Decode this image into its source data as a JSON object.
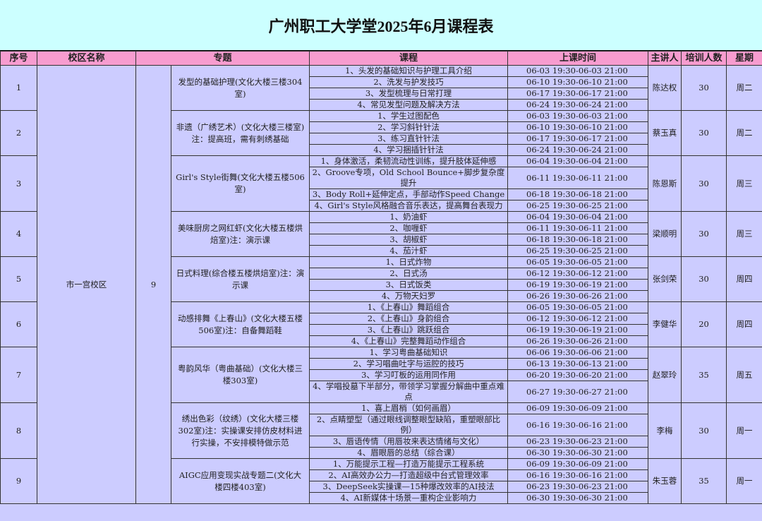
{
  "title": "广州职工大学堂2025年6月课程表",
  "header": {
    "columns": [
      "序号",
      "校区名称",
      "专题",
      "课程",
      "上课时间",
      "主讲人",
      "培训人数",
      "星期"
    ]
  },
  "campus": "市一宫校区",
  "campus_count": 9,
  "courses": [
    {
      "no": 1,
      "topic": "发型的基础护理(文化大楼三楼304室)",
      "lecturer": "陈达权",
      "students": 30,
      "weekday": "周二",
      "sessions": [
        {
          "title": "1、头发的基础知识与护理工具介绍",
          "time": "06-03 19:30-06-03 21:00"
        },
        {
          "title": "2、洗发与护发技巧",
          "time": "06-10 19:30-06-10 21:00"
        },
        {
          "title": "3、发型梳理与日常打理",
          "time": "06-17 19:30-06-17 21:00"
        },
        {
          "title": "4、常见发型问题及解决方法",
          "time": "06-24 19:30-06-24 21:00"
        }
      ]
    },
    {
      "no": 2,
      "topic": "非遗（广绣艺术）(文化大楼三楼室)注：提高班，需有刺绣基础",
      "lecturer": "蔡玉真",
      "students": 30,
      "weekday": "周二",
      "sessions": [
        {
          "title": "1、学生过图配色",
          "time": "06-03 19:30-06-03 21:00"
        },
        {
          "title": "2、学习斜针针法",
          "time": "06-10 19:30-06-10 21:00"
        },
        {
          "title": "3、练习直针针法",
          "time": "06-17 19:30-06-17 21:00"
        },
        {
          "title": "4、学习捆插针针法",
          "time": "06-24 19:30-06-24 21:00"
        }
      ]
    },
    {
      "no": 3,
      "topic": "Girl's Style街舞(文化大楼五楼506室)",
      "lecturer": "陈恩斯",
      "students": 30,
      "weekday": "周三",
      "sessions": [
        {
          "title": "1、身体激活，柔韧流动性训练，提升肢体延伸感",
          "time": "06-04 19:30-06-04 21:00"
        },
        {
          "title": "2、Groove专项，Old School Bounce+脚步复杂度提升",
          "time": "06-11 19:30-06-11 21:00"
        },
        {
          "title": "3、Body Roll+延伸定点，手部动作Speed Change",
          "time": "06-18 19:30-06-18 21:00"
        },
        {
          "title": "4、Girl's Style风格融合音乐表达，提高舞台表现力",
          "time": "06-25 19:30-06-25 21:00"
        }
      ]
    },
    {
      "no": 4,
      "topic": "美味厨房之网红虾(文化大楼五楼烘焙室)注：演示课",
      "lecturer": "梁顺明",
      "students": 30,
      "weekday": "周三",
      "sessions": [
        {
          "title": "1、奶油虾",
          "time": "06-04 19:30-06-04 21:00"
        },
        {
          "title": "2、咖喱虾",
          "time": "06-11 19:30-06-11 21:00"
        },
        {
          "title": "3、胡椒虾",
          "time": "06-18 19:30-06-18 21:00"
        },
        {
          "title": "4、茄汁虾",
          "time": "06-25 19:30-06-25 21:00"
        }
      ]
    },
    {
      "no": 5,
      "topic": "日式料理(综合楼五楼烘焙室)注：演示课",
      "lecturer": "张剑荣",
      "students": 30,
      "weekday": "周四",
      "sessions": [
        {
          "title": "1、日式炸物",
          "time": "06-05 19:30-06-05 21:00"
        },
        {
          "title": "2、日式汤",
          "time": "06-12 19:30-06-12 21:00"
        },
        {
          "title": "3、日式饭类",
          "time": "06-19 19:30-06-19 21:00"
        },
        {
          "title": "4、万物天妇罗",
          "time": "06-26 19:30-06-26 21:00"
        }
      ]
    },
    {
      "no": 6,
      "topic": "动感排舞《上春山》(文化大楼五楼506室)注：自备舞蹈鞋",
      "lecturer": "李健华",
      "students": 20,
      "weekday": "周四",
      "sessions": [
        {
          "title": "1、《上春山》舞蹈组合",
          "time": "06-05 19:30-06-05 21:00"
        },
        {
          "title": "2、《上春山》身韵组合",
          "time": "06-12 19:30-06-12 21:00"
        },
        {
          "title": "3、《上春山》跳跃组合",
          "time": "06-19 19:30-06-19 21:00"
        },
        {
          "title": "4、《上春山》完整舞蹈动作组合",
          "time": "06-26 19:30-06-26 21:00"
        }
      ]
    },
    {
      "no": 7,
      "topic": "粤韵风华（粤曲基础）(文化大楼三楼303室)",
      "lecturer": "赵翠玲",
      "students": 35,
      "weekday": "周五",
      "sessions": [
        {
          "title": "1、学习粤曲基础知识",
          "time": "06-06 19:30-06-06 21:00"
        },
        {
          "title": "2、学习唱曲吐字与运腔的技巧",
          "time": "06-13 19:30-06-13 21:00"
        },
        {
          "title": "3、学习叮板的运用同作用",
          "time": "06-20 19:30-06-20 21:00"
        },
        {
          "title": "4、学唱投墓下半部分，带领学习掌握分解曲中重点难点",
          "time": "06-27 19:30-06-27 21:00"
        }
      ]
    },
    {
      "no": 8,
      "topic": "绣出色彩（纹绣）(文化大楼三楼302室)注：实操课安排仿皮材料进行实操，不安排模特做示范",
      "lecturer": "李梅",
      "students": 30,
      "weekday": "周一",
      "sessions": [
        {
          "title": "1、喜上眉梢（如何画眉）",
          "time": "06-09 19:30-06-09 21:00"
        },
        {
          "title": "2、点睛塑型（通过眼线调整眼型缺陷，重塑眼部比例）",
          "time": "06-16 19:30-06-16 21:00"
        },
        {
          "title": "3、唇语传情（用唇妆来表达情绪与文化）",
          "time": "06-23 19:30-06-23 21:00"
        },
        {
          "title": "4、眉眼唇的总结（综合课）",
          "time": "06-30 19:30-06-30 21:00"
        }
      ]
    },
    {
      "no": 9,
      "topic": "AIGC应用变现实战专题二(文化大楼四楼403室)",
      "lecturer": "朱玉蓉",
      "students": 35,
      "weekday": "周一",
      "sessions": [
        {
          "title": "1、万能提示工程—打造万能提示工程系统",
          "time": "06-09 19:30-06-09 21:00"
        },
        {
          "title": "2、AI高效办公力—打造超级中台式管理效率",
          "time": "06-16 19:30-06-16 21:00"
        },
        {
          "title": "3、DeepSeek实操课—15种爆改效率的AI技法",
          "time": "06-23 19:30-06-23 21:00"
        },
        {
          "title": "4、AI新媒体十场景—重构企业影响力",
          "time": "06-30 19:30-06-30 21:00"
        }
      ]
    }
  ]
}
